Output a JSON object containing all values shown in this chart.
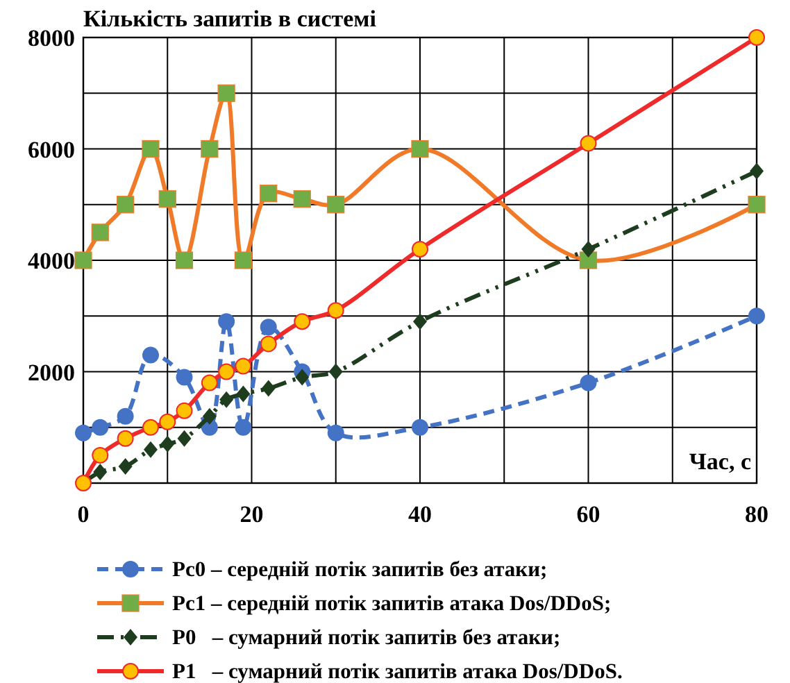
{
  "chart_data": {
    "type": "line",
    "ylabel": "Кількість запитів в системі",
    "xlabel": "Час, с",
    "xlim": [
      0,
      80
    ],
    "xticks": [
      0,
      {
        "value": 10,
        "label": null
      },
      20,
      {
        "value": 30,
        "label": null
      },
      40,
      {
        "value": 50,
        "label": null
      },
      60,
      {
        "value": 70,
        "label": null
      },
      80
    ],
    "ylim": [
      0,
      8000
    ],
    "yticks": [
      {
        "value": 0,
        "label": null
      },
      {
        "value": 1000,
        "label": null
      },
      2000,
      {
        "value": 3000,
        "label": null
      },
      4000,
      {
        "value": 5000,
        "label": null
      },
      6000,
      {
        "value": 7000,
        "label": null
      },
      8000
    ],
    "grid": true,
    "legend": "bottom",
    "series": [
      {
        "name": "Pc0 – середній потік запитів без атаки;",
        "color": "#4472c4",
        "marker": "circle",
        "line_style": "dashed",
        "x": [
          0,
          2,
          5,
          8,
          10,
          12,
          15,
          17,
          19,
          22,
          26,
          30,
          40,
          60,
          80
        ],
        "values": [
          900,
          1000,
          1200,
          2300,
          null,
          1900,
          1000,
          2900,
          1000,
          2800,
          2000,
          900,
          1000,
          1800,
          3000
        ]
      },
      {
        "name": "Pc1 – середній потік запитів атака Dos/DDoS;",
        "color": "#f07a28",
        "colors": [
          "#70ad47",
          "#70ad47",
          "#70ad47",
          "#70ad47",
          "#70ad47",
          "#70ad47",
          "#70ad47",
          "#70ad47",
          "#70ad47",
          "#70ad47",
          "#70ad47",
          "#70ad47",
          "#70ad47",
          "#70ad47",
          "#70ad47"
        ],
        "marker": "square",
        "line_style": "solid",
        "x": [
          0,
          2,
          5,
          8,
          10,
          12,
          15,
          17,
          19,
          22,
          26,
          30,
          40,
          60,
          80
        ],
        "values": [
          4000,
          4500,
          5000,
          6000,
          5100,
          4000,
          6000,
          7000,
          4000,
          5200,
          5100,
          5000,
          6000,
          4000,
          5000
        ]
      },
      {
        "name": "P0   – сумарний потік запитів без атаки;",
        "color": "#1e3d1e",
        "marker": "diamond",
        "line_style": "dotted",
        "x": [
          0,
          2,
          5,
          8,
          10,
          12,
          15,
          17,
          19,
          22,
          26,
          30,
          40,
          60,
          80
        ],
        "values": [
          0,
          200,
          300,
          600,
          700,
          800,
          1200,
          1500,
          1600,
          1700,
          1900,
          2000,
          2900,
          4200,
          5600
        ]
      },
      {
        "name": "P1   – сумарний потік запитів атака Dos/DDoS.",
        "color": "#ee2a2a",
        "colors": [
          "#ffc000",
          "#ffc000",
          "#ffc000",
          "#ffc000",
          "#ffc000",
          "#ffc000",
          "#ffc000",
          "#ffc000",
          "#ffc000",
          "#ffc000",
          "#ffc000",
          "#ffc000",
          "#ffc000",
          "#ffc000",
          "#ffc000"
        ],
        "marker": "circle",
        "line_style": "solid",
        "x": [
          0,
          2,
          5,
          8,
          10,
          12,
          15,
          17,
          19,
          22,
          26,
          30,
          40,
          60,
          80
        ],
        "values": [
          0,
          500,
          800,
          1000,
          1100,
          1300,
          1800,
          2000,
          2100,
          2500,
          2900,
          3100,
          4200,
          6100,
          8000
        ]
      }
    ]
  }
}
